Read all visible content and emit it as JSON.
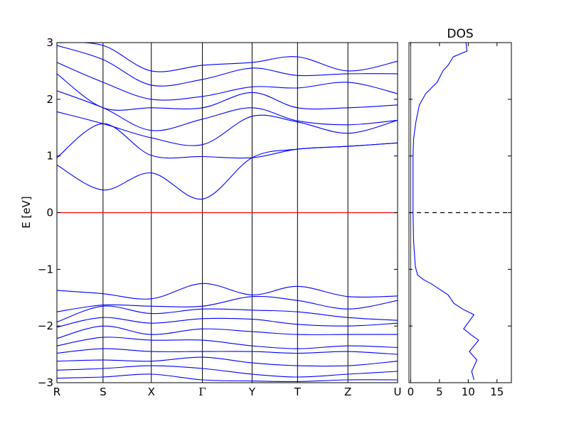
{
  "chart_data": [
    {
      "type": "line",
      "title": "",
      "ylabel": "E [eV]",
      "xlabel": "",
      "ylim": [
        -3,
        3
      ],
      "yticks": [
        -3,
        -2,
        -1,
        0,
        1,
        2,
        3
      ],
      "ytick_labels": [
        "−3",
        "−2",
        "−1",
        "0",
        "1",
        "2",
        "3"
      ],
      "kpoint_labels": [
        "R",
        "S",
        "X",
        "Γ",
        "Y",
        "T",
        "Z",
        "U"
      ],
      "kpoint_positions": [
        0,
        0.1354,
        0.2771,
        0.4271,
        0.5729,
        0.7063,
        0.8542,
        1
      ],
      "fermi_level": 0,
      "fermi_color": "#ff0000",
      "band_color": "#0000ff",
      "grid": false,
      "conduction_bands": [
        [
          0.84,
          0.4,
          0.7,
          0.24,
          0.97,
          1.12,
          1.17,
          1.23
        ],
        [
          0.97,
          1.57,
          1.01,
          0.99,
          0.97,
          1.12,
          1.17,
          1.23
        ],
        [
          1.78,
          1.57,
          1.32,
          1.2,
          1.7,
          1.6,
          1.4,
          1.63
        ],
        [
          2.15,
          1.85,
          1.45,
          1.65,
          1.85,
          1.62,
          1.55,
          1.63
        ],
        [
          2.45,
          1.85,
          1.85,
          1.85,
          2.12,
          1.85,
          1.85,
          1.9
        ],
        [
          2.65,
          2.3,
          2.0,
          2.05,
          2.22,
          2.2,
          2.3,
          2.1
        ],
        [
          2.95,
          2.7,
          2.25,
          2.35,
          2.55,
          2.42,
          2.45,
          2.45
        ],
        [
          3.0,
          2.95,
          2.5,
          2.6,
          2.65,
          2.75,
          2.5,
          2.67
        ]
      ],
      "valence_bands": [
        [
          -1.37,
          -1.43,
          -1.52,
          -1.25,
          -1.45,
          -1.3,
          -1.48,
          -1.47
        ],
        [
          -1.75,
          -1.63,
          -1.65,
          -1.65,
          -1.48,
          -1.55,
          -1.7,
          -1.55
        ],
        [
          -1.93,
          -1.65,
          -1.78,
          -1.7,
          -1.72,
          -1.75,
          -1.85,
          -1.9
        ],
        [
          -2.02,
          -1.85,
          -1.95,
          -1.87,
          -1.88,
          -1.97,
          -2.0,
          -1.95
        ],
        [
          -2.22,
          -2.0,
          -2.15,
          -2.05,
          -2.1,
          -2.15,
          -2.15,
          -2.15
        ],
        [
          -2.35,
          -2.2,
          -2.25,
          -2.25,
          -2.35,
          -2.4,
          -2.35,
          -2.38
        ],
        [
          -2.48,
          -2.4,
          -2.45,
          -2.45,
          -2.45,
          -2.48,
          -2.45,
          -2.5
        ],
        [
          -2.62,
          -2.6,
          -2.62,
          -2.55,
          -2.65,
          -2.7,
          -2.7,
          -2.62
        ],
        [
          -2.78,
          -2.75,
          -2.7,
          -2.75,
          -2.85,
          -2.9,
          -2.85,
          -2.8
        ],
        [
          -2.92,
          -2.9,
          -2.85,
          -2.95,
          -2.97,
          -2.98,
          -2.95,
          -2.95
        ]
      ]
    },
    {
      "type": "line",
      "title": "DOS",
      "xlabel": "",
      "ylabel": "",
      "xlim": [
        -0.3,
        17.5
      ],
      "ylim": [
        -3,
        3
      ],
      "xticks": [
        0,
        5,
        10,
        15
      ],
      "xtick_labels": [
        "0",
        "5",
        "10",
        "15"
      ],
      "fermi_level": 0,
      "fermi_style": "dashed",
      "line_color": "#0000ff",
      "dos_x": [
        11,
        10.6,
        11.5,
        10.2,
        11.8,
        10.4,
        9.2,
        11,
        9.0,
        7.5,
        6.5,
        5.0,
        3.5,
        2.2,
        1.2,
        0.8,
        0.5,
        0.4,
        0.4,
        0.4,
        0.4,
        0.4,
        0.4,
        0.4,
        0.4,
        0.5,
        0.9,
        1.5,
        2.6,
        3.6,
        4.6,
        5.6,
        6.5,
        7.4,
        9.8,
        9.6
      ],
      "dos_y": [
        -2.95,
        -2.8,
        -2.6,
        -2.45,
        -2.25,
        -2.15,
        -2.05,
        -1.8,
        -1.7,
        -1.6,
        -1.45,
        -1.35,
        -1.25,
        -1.18,
        -1.1,
        -0.95,
        -0.5,
        0,
        0.1,
        0.15,
        0.3,
        0.5,
        0.7,
        0.9,
        1.0,
        1.3,
        1.6,
        1.9,
        2.1,
        2.2,
        2.3,
        2.5,
        2.6,
        2.75,
        2.85,
        3.0
      ]
    }
  ]
}
